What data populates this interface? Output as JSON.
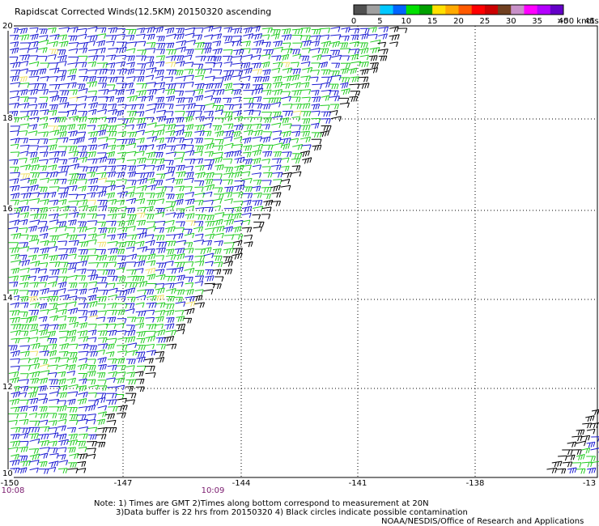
{
  "title": "Rapidscat Corrected Winds(12.5KM) 20150320 ascending",
  "color_scale": {
    "labels": [
      "0",
      "5",
      "10",
      "15",
      "20",
      "25",
      "30",
      "35",
      "40",
      "45"
    ],
    "unit": ">50 knots",
    "colors": [
      "#505050",
      "#a0a0a0",
      "#00c8ff",
      "#0064ff",
      "#00e000",
      "#00a000",
      "#ffe000",
      "#ffaa00",
      "#ff5a00",
      "#ff0000",
      "#cc0000",
      "#704020",
      "#c890c8",
      "#ff00ff",
      "#b400ff",
      "#6400c8"
    ]
  },
  "latitude_labels": [
    "20",
    "18",
    "16",
    "14",
    "12",
    "10"
  ],
  "longitude_labels": [
    "-150",
    "-147",
    "-144",
    "-141",
    "-138",
    "-13"
  ],
  "time_labels": [
    "10:08",
    "10:09"
  ],
  "notes": [
    "Note: 1) Times are GMT 2)Times along bottom correspond to measurement at 20N",
    "3)Data buffer is 22 hrs from 20150320 4) Black circles indicate possible contamination",
    "NOAA/NESDIS/Office of Research and Applications"
  ],
  "wind_colors": {
    "blue": "#1a1ad2",
    "green": "#22cc22",
    "black": "#000000",
    "yellow": "#f0e06a"
  }
}
